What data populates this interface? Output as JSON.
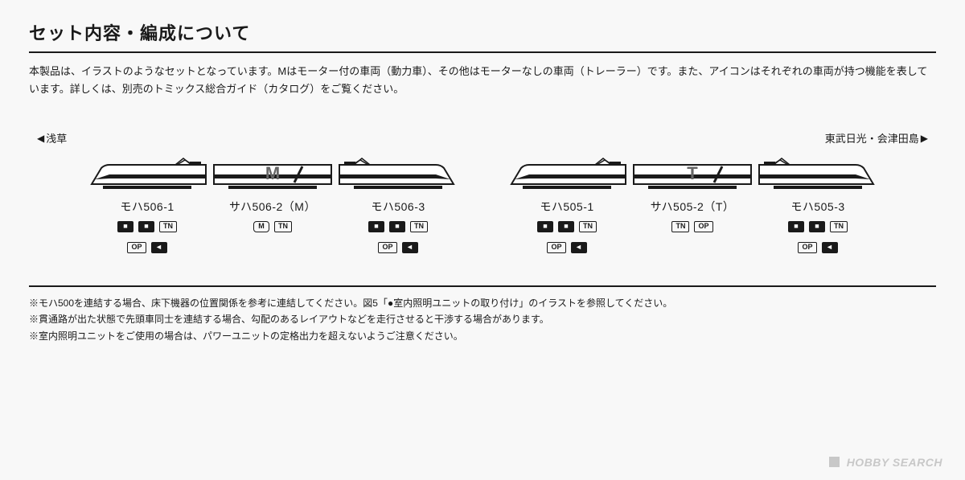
{
  "title": "セット内容・編成について",
  "intro": "本製品は、イラストのようなセットとなっています。Mはモーター付の車両（動力車）、その他はモーターなしの車両（トレーラー）です。また、アイコンはそれぞれの車両が持つ機能を表しています。詳しくは、別売のトミックス総合ガイド（カタログ）をご覧ください。",
  "direction": {
    "left": "浅草",
    "right": "東武日光・会津田島"
  },
  "units": [
    {
      "cars": [
        {
          "shape": "cab-left",
          "letter": "",
          "label": "モハ506-1",
          "icons": [
            "cpl",
            "cpl",
            "tn",
            "op",
            "lt"
          ]
        },
        {
          "shape": "middle",
          "letter": "M",
          "label": "サハ506-2（M）",
          "icons": [
            "mot",
            "tn"
          ]
        },
        {
          "shape": "cab-right",
          "letter": "",
          "label": "モハ506-3",
          "icons": [
            "cpl",
            "cpl",
            "tn",
            "op",
            "lt"
          ]
        }
      ]
    },
    {
      "cars": [
        {
          "shape": "cab-left",
          "letter": "",
          "label": "モハ505-1",
          "icons": [
            "cpl",
            "cpl",
            "tn",
            "op",
            "lt"
          ]
        },
        {
          "shape": "middle",
          "letter": "T",
          "label": "サハ505-2（T）",
          "icons": [
            "tn",
            "op"
          ]
        },
        {
          "shape": "cab-right",
          "letter": "",
          "label": "モハ505-3",
          "icons": [
            "cpl",
            "cpl",
            "tn",
            "op",
            "lt"
          ]
        }
      ]
    }
  ],
  "notes": [
    "※モハ500を連結する場合、床下機器の位置関係を参考に連結してください。図5「●室内照明ユニットの取り付け」のイラストを参照してください。",
    "※貫通路が出た状態で先頭車同士を連結する場合、勾配のあるレイアウトなどを走行させると干渉する場合があります。",
    "※室内照明ユニットをご使用の場合は、パワーユニットの定格出力を超えないようご注意ください。"
  ],
  "colors": {
    "stroke": "#1a1a1a",
    "body_fill": "#ffffff",
    "stripe": "#1a1a1a",
    "letter_fill": "#666"
  },
  "iconmap": {
    "tn": {
      "text": "TN",
      "cls": "feat-icon"
    },
    "op": {
      "text": "OP",
      "cls": "feat-icon"
    },
    "mot": {
      "text": "M",
      "cls": "feat-icon pill"
    },
    "cpl": {
      "text": "■",
      "cls": "feat-icon solid"
    },
    "lt": {
      "text": "◄",
      "cls": "feat-icon solid"
    }
  },
  "watermark": "HOBBY SEARCH"
}
